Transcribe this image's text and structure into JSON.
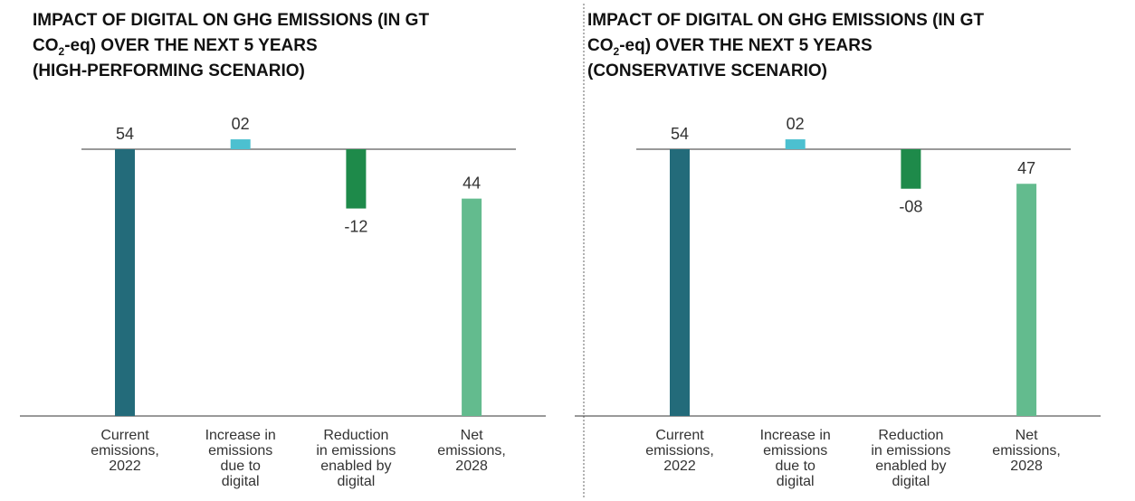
{
  "chart_data": [
    {
      "type": "waterfall",
      "title": [
        "IMPACT OF DIGITAL ON GHG EMISSIONS (IN GT",
        "CO",
        "2",
        "-eq) OVER THE NEXT 5 YEARS",
        "(HIGH-PERFORMING SCENARIO)"
      ],
      "categories": [
        [
          "Current",
          "emissions,",
          "2022"
        ],
        [
          "Increase in",
          "emissions",
          "due to",
          "digital"
        ],
        [
          "Reduction",
          "in emissions",
          "enabled by",
          "digital"
        ],
        [
          "Net",
          "emissions,",
          "2028"
        ]
      ],
      "values": [
        54,
        2,
        -12,
        44
      ],
      "value_labels": [
        "54",
        "02",
        "-12",
        "44"
      ],
      "colors": [
        "#236b7a",
        "#4cc0d0",
        "#1e8a4a",
        "#63bb8e"
      ]
    },
    {
      "type": "waterfall",
      "title": [
        "IMPACT OF DIGITAL ON GHG EMISSIONS (IN GT",
        "CO",
        "2",
        "-eq) OVER THE NEXT 5 YEARS",
        "(CONSERVATIVE SCENARIO)"
      ],
      "categories": [
        [
          "Current",
          "emissions,",
          "2022"
        ],
        [
          "Increase in",
          "emissions",
          "due to",
          "digital"
        ],
        [
          "Reduction",
          "in emissions",
          "enabled by",
          "digital"
        ],
        [
          "Net",
          "emissions,",
          "2028"
        ]
      ],
      "values": [
        54,
        2,
        -8,
        47
      ],
      "value_labels": [
        "54",
        "02",
        "-08",
        "47"
      ],
      "colors": [
        "#236b7a",
        "#4cc0d0",
        "#1e8a4a",
        "#63bb8e"
      ]
    }
  ]
}
